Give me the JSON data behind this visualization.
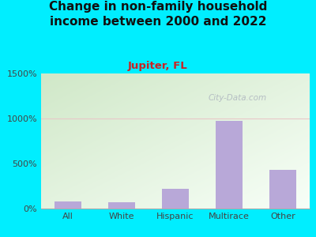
{
  "title": "Change in non-family household\nincome between 2000 and 2022",
  "subtitle": "Jupiter, FL",
  "categories": [
    "All",
    "White",
    "Hispanic",
    "Multirace",
    "Other"
  ],
  "values": [
    75,
    70,
    220,
    975,
    430
  ],
  "bar_color": "#b8a8d8",
  "background_color": "#00eeff",
  "plot_bg_topleft": "#d0e8c8",
  "plot_bg_bottomright": "#f8fff8",
  "ylim": [
    0,
    1500
  ],
  "yticks": [
    0,
    500,
    1000,
    1500
  ],
  "ytick_labels": [
    "0%",
    "500%",
    "1000%",
    "1500%"
  ],
  "title_fontsize": 11,
  "subtitle_fontsize": 9.5,
  "subtitle_color": "#cc2222",
  "title_color": "#111111",
  "tick_label_color": "#444444",
  "watermark": "City-Data.com",
  "watermark_color": "#b0b8c0",
  "grid_color": "#e8c8c8",
  "grid_linewidth": 0.8,
  "bar_width": 0.5
}
